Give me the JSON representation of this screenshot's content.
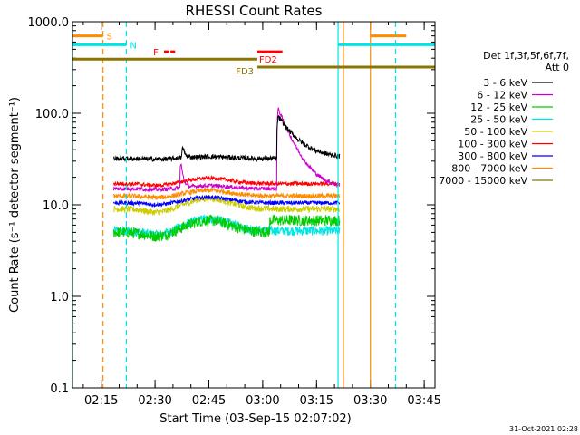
{
  "chart_data": {
    "type": "line",
    "title": "RHESSI Count Rates",
    "xlabel": "Start Time (03-Sep-15 02:07:02)",
    "ylabel": "Count Rate (s⁻¹ detector segment⁻¹)",
    "footer": "31-Oct-2021 02:28",
    "x_range_minutes_after_0207": [
      0,
      101
    ],
    "y_scale": "log",
    "ylim": [
      0.1,
      1000
    ],
    "x_ticks": [
      {
        "label": "02:15",
        "min": 8
      },
      {
        "label": "02:30",
        "min": 23
      },
      {
        "label": "02:45",
        "min": 38
      },
      {
        "label": "03:00",
        "min": 53
      },
      {
        "label": "03:15",
        "min": 68
      },
      {
        "label": "03:30",
        "min": 83
      },
      {
        "label": "03:45",
        "min": 98
      }
    ],
    "y_ticks": [
      {
        "label": "0.1",
        "value": 0.1
      },
      {
        "label": "1.0",
        "value": 1
      },
      {
        "label": "10.0",
        "value": 10
      },
      {
        "label": "100.0",
        "value": 100
      },
      {
        "label": "1000.0",
        "value": 1000
      }
    ],
    "legend": {
      "header": [
        "Det 1f,3f,5f,6f,7f,",
        "Att 0"
      ],
      "placement": "right"
    },
    "series": [
      {
        "name": "3 - 6 keV",
        "color": "#000000",
        "base": 32,
        "noise": 0.06,
        "bump": 0.05,
        "spikes": [
          [
            30.5,
            1.45,
            0.6
          ],
          [
            57,
            3.0,
            5.0
          ]
        ]
      },
      {
        "name": "6 - 12 keV",
        "color": "#cc00cc",
        "base": 15,
        "noise": 0.05,
        "bump": 0.08,
        "spikes": [
          [
            30,
            2.3,
            0.6
          ],
          [
            57,
            8.0,
            4.0
          ]
        ]
      },
      {
        "name": "12 - 25 keV",
        "color": "#00cc00",
        "base": 5,
        "noise": 0.14,
        "bump": 0.35,
        "offset_after": [
          55,
          1.35
        ]
      },
      {
        "name": "25 - 50 keV",
        "color": "#00e5e5",
        "base": 5.2,
        "noise": 0.12,
        "bump": 0.35
      },
      {
        "name": "50 - 100 keV",
        "color": "#cccc00",
        "base": 9,
        "noise": 0.08,
        "bump": 0.3
      },
      {
        "name": "100 - 300 keV",
        "color": "#ff0000",
        "base": 17,
        "noise": 0.05,
        "bump": 0.15
      },
      {
        "name": "300 - 800 keV",
        "color": "#0000ff",
        "base": 10.5,
        "noise": 0.05,
        "bump": 0.15
      },
      {
        "name": "800 - 7000 keV",
        "color": "#ff8c00",
        "base": 12.5,
        "noise": 0.06,
        "bump": 0.15
      },
      {
        "name": "7000 - 15000 keV",
        "color": "#8b7500"
      }
    ],
    "data_span_minutes": [
      11.5,
      74.5
    ],
    "flag_bars": [
      {
        "label": "S",
        "color": "#ff8c00",
        "segments": [
          [
            0,
            8.5
          ],
          [
            83,
            93
          ]
        ],
        "y": 700,
        "label_at": 9.5
      },
      {
        "label": "N",
        "color": "#00e5e5",
        "segments": [
          [
            0,
            15
          ],
          [
            74,
            101
          ]
        ],
        "y": 560,
        "label_at": 16
      },
      {
        "label": "F",
        "color": "#ff0000",
        "segments": [
          [
            25.5,
            26.8
          ],
          [
            27.3,
            28.6
          ]
        ],
        "y": 470,
        "label_at": 22.5
      },
      {
        "label": "FD2",
        "color": "#ff0000",
        "segments": [
          [
            51.5,
            58.5
          ]
        ],
        "y": 470,
        "label_at": 52
      },
      {
        "label": "FD3",
        "color": "#8b7500",
        "segments": [
          [
            51.5,
            101
          ]
        ],
        "y": 320,
        "label_at": 45.5
      },
      {
        "color": "#8b7500",
        "segments": [
          [
            0,
            51.5
          ]
        ],
        "y": 390
      }
    ],
    "vlines": [
      {
        "min": 0,
        "color": "#00e5e5",
        "dash": false
      },
      {
        "min": 8.5,
        "color": "#ff8c00",
        "dash": true
      },
      {
        "min": 15,
        "color": "#00e5e5",
        "dash": true
      },
      {
        "min": 74,
        "color": "#00e5e5",
        "dash": false
      },
      {
        "min": 75.5,
        "color": "#ff8c00",
        "dash": false
      },
      {
        "min": 83,
        "color": "#ff8c00",
        "dash": false
      },
      {
        "min": 90,
        "color": "#00e5e5",
        "dash": true
      }
    ]
  }
}
